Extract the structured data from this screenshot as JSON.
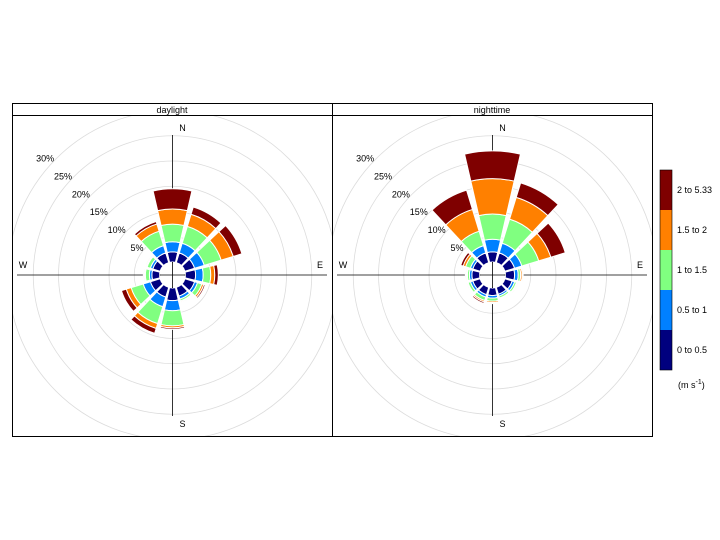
{
  "chart_data": {
    "type": "windrose",
    "panels": [
      {
        "title": "daylight",
        "petals": [
          {
            "dir": 0,
            "cum": [
              2.0,
              4.0,
              7.5,
              10.5,
              14.5
            ]
          },
          {
            "dir": 30,
            "cum": [
              2.0,
              4.0,
              7.5,
              10.0,
              11.5
            ]
          },
          {
            "dir": 60,
            "cum": [
              2.0,
              4.0,
              7.5,
              10.0,
              11.8
            ]
          },
          {
            "dir": 90,
            "cum": [
              2.0,
              3.5,
              5.0,
              5.8,
              6.5
            ]
          },
          {
            "dir": 120,
            "cum": [
              2.0,
              2.6,
              3.5,
              3.9,
              4.2
            ]
          },
          {
            "dir": 150,
            "cum": [
              1.8,
              2.4,
              2.8,
              3.0,
              3.2
            ]
          },
          {
            "dir": 180,
            "cum": [
              2.5,
              4.5,
              7.5,
              7.9,
              8.2
            ]
          },
          {
            "dir": 210,
            "cum": [
              2.0,
              4.0,
              7.5,
              8.5,
              9.5
            ]
          },
          {
            "dir": 240,
            "cum": [
              2.0,
              3.5,
              6.0,
              7.0,
              8.0
            ]
          },
          {
            "dir": 270,
            "cum": [
              1.5,
              2.0,
              2.8,
              3.0,
              3.2
            ]
          },
          {
            "dir": 300,
            "cum": [
              1.5,
              2.0,
              2.7,
              2.9,
              3.1
            ]
          },
          {
            "dir": 330,
            "cum": [
              2.0,
              3.5,
              6.5,
              8.0,
              8.5
            ]
          }
        ]
      },
      {
        "title": "nighttime",
        "petals": [
          {
            "dir": 0,
            "cum": [
              2.0,
              4.5,
              9.5,
              16.5,
              22.0
            ]
          },
          {
            "dir": 30,
            "cum": [
              2.0,
              4.0,
              9.0,
              13.5,
              16.5
            ]
          },
          {
            "dir": 60,
            "cum": [
              2.0,
              3.5,
              7.0,
              9.5,
              12.5
            ]
          },
          {
            "dir": 90,
            "cum": [
              1.8,
              2.5,
              3.0,
              3.3,
              3.5
            ]
          },
          {
            "dir": 120,
            "cum": [
              1.5,
              2.0,
              2.4,
              2.6,
              2.8
            ]
          },
          {
            "dir": 150,
            "cum": [
              1.4,
              1.8,
              2.2,
              2.4,
              2.6
            ]
          },
          {
            "dir": 180,
            "cum": [
              1.5,
              2.0,
              2.6,
              2.9,
              3.1
            ]
          },
          {
            "dir": 210,
            "cum": [
              1.5,
              2.0,
              2.7,
              3.0,
              3.3
            ]
          },
          {
            "dir": 240,
            "cum": [
              1.5,
              2.0,
              2.5,
              2.7,
              2.9
            ]
          },
          {
            "dir": 270,
            "cum": [
              1.5,
              2.0,
              2.4,
              2.6,
              2.8
            ]
          },
          {
            "dir": 300,
            "cum": [
              1.5,
              2.0,
              3.0,
              3.5,
              4.0
            ]
          },
          {
            "dir": 330,
            "cum": [
              2.0,
              3.5,
              6.5,
              11.0,
              15.0
            ]
          }
        ]
      }
    ],
    "speed_bins": [
      "0 to 0.5",
      "0.5 to 1",
      "1 to 1.5",
      "1.5 to 2",
      "2 to 5.33"
    ],
    "colors": [
      "#00007f",
      "#0080ff",
      "#80ff80",
      "#ff8000",
      "#7f0000"
    ],
    "radial_ticks": [
      "5%",
      "10%",
      "15%",
      "20%",
      "25%",
      "30%"
    ],
    "compass": [
      "N",
      "E",
      "S",
      "W"
    ],
    "legend_unit": "(m s",
    "legend_unit_sup": "-1",
    "legend_unit_close": ")",
    "legend_placement": "right",
    "grid": true
  }
}
